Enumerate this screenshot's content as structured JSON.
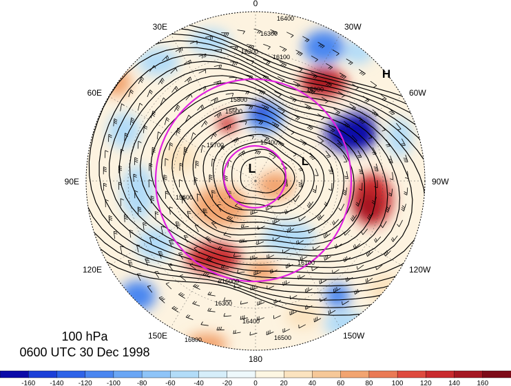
{
  "title": {
    "level": "100 hPa",
    "time": "0600 UTC 30 Dec 1998"
  },
  "projection": "north polar stereographic",
  "longitude_labels": [
    "0",
    "30W",
    "60W",
    "90W",
    "120W",
    "150W",
    "180",
    "150E",
    "120E",
    "90E",
    "60E",
    "30E"
  ],
  "pressure_centers": [
    {
      "label": "H",
      "lon_label": "60W side"
    },
    {
      "label": "L",
      "near": "pole"
    },
    {
      "label": "L",
      "near": "pole, 90W side"
    }
  ],
  "contour_labels": [
    "16400",
    "16300",
    "16200",
    "16100",
    "15900",
    "15800",
    "15700",
    "15600",
    "15500",
    "15400",
    "16000",
    "16500",
    "16600"
  ],
  "colorbar": {
    "tick_labels": [
      "-160",
      "-140",
      "-120",
      "-100",
      "-80",
      "-60",
      "-40",
      "-20",
      "0",
      "20",
      "40",
      "60",
      "80",
      "100",
      "120",
      "140",
      "160"
    ],
    "colors": [
      "#0a0aa8",
      "#1b3fd8",
      "#2e63e8",
      "#4a86f0",
      "#6aa6f5",
      "#8ec4f8",
      "#b2dcf8",
      "#d6eefa",
      "#eef8fb",
      "#fdf6e2",
      "#fbe3bf",
      "#f6c898",
      "#f2a470",
      "#ea7a55",
      "#de4a3e",
      "#c92a2e",
      "#a51722",
      "#7d0b18"
    ]
  },
  "anomaly_colors": {
    "strong_positive": "#c92a2e",
    "positive": "#f2a470",
    "weak_positive": "#fbe3bf",
    "weak_negative": "#b2dcf8",
    "negative": "#4a86f0",
    "strong_negative": "#0a0aa8"
  },
  "overlay_circle_color": "#e020e0"
}
